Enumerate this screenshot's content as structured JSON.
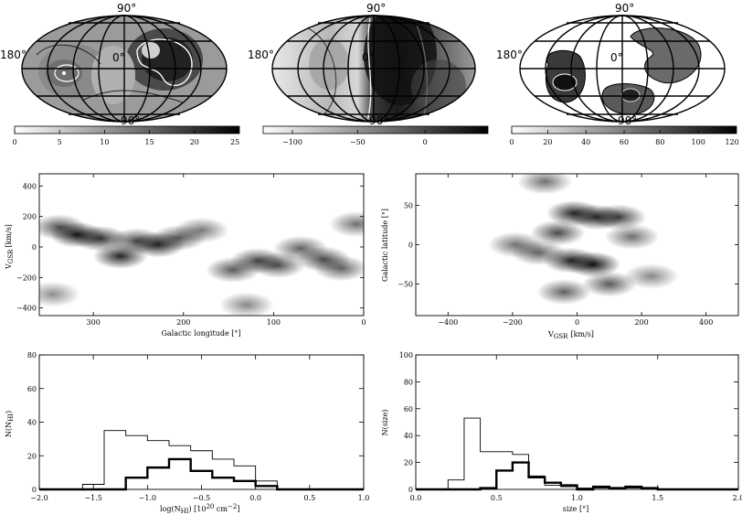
{
  "colors": {
    "ink": "#000000",
    "panel_bg": "#ffffff"
  },
  "maps": [
    {
      "lon_left": "180°",
      "lat_top": "90°",
      "lat_bottom": "−90°",
      "lon_center": "0°",
      "colorbar_ticks": [
        "0",
        "5",
        "10",
        "15",
        "20",
        "25"
      ]
    },
    {
      "lon_left": "180°",
      "lat_top": "90°",
      "lat_bottom": "−90°",
      "lon_center": "0°",
      "colorbar_ticks": [
        "−100",
        "−50",
        "0"
      ]
    },
    {
      "lon_left": "180°",
      "lat_top": "90°",
      "lat_bottom": "−90°",
      "lon_center": "0°",
      "colorbar_ticks": [
        "0",
        "20",
        "40",
        "60",
        "80",
        "100",
        "120"
      ]
    }
  ],
  "chart_data": [
    {
      "type": "heatmap",
      "xlabel_main": "Galactic longitude [°]",
      "ylabel_main": "V",
      "ylabel_sub": "GSR",
      "ylabel_unit": "[km/s]",
      "xlim": [
        360,
        0
      ],
      "ylim": [
        -450,
        480
      ],
      "xticks": [
        300,
        200,
        100,
        0
      ],
      "yticks": [
        400,
        200,
        0,
        -200,
        -400
      ],
      "blobs": [
        {
          "x": 318,
          "y": 80,
          "w": 0.95
        },
        {
          "x": 338,
          "y": 130,
          "w": 0.55
        },
        {
          "x": 292,
          "y": 55,
          "w": 0.75
        },
        {
          "x": 270,
          "y": -60,
          "w": 0.85
        },
        {
          "x": 252,
          "y": 40,
          "w": 0.6
        },
        {
          "x": 228,
          "y": 15,
          "w": 0.85
        },
        {
          "x": 205,
          "y": 60,
          "w": 0.5
        },
        {
          "x": 180,
          "y": 110,
          "w": 0.3
        },
        {
          "x": 145,
          "y": -150,
          "w": 0.5
        },
        {
          "x": 118,
          "y": -90,
          "w": 0.6
        },
        {
          "x": 95,
          "y": -120,
          "w": 0.55
        },
        {
          "x": 70,
          "y": -10,
          "w": 0.45
        },
        {
          "x": 45,
          "y": -80,
          "w": 0.6
        },
        {
          "x": 25,
          "y": -140,
          "w": 0.45
        },
        {
          "x": 8,
          "y": 150,
          "w": 0.35
        },
        {
          "x": 130,
          "y": -380,
          "w": 0.2
        },
        {
          "x": 345,
          "y": -310,
          "w": 0.15
        }
      ]
    },
    {
      "type": "heatmap",
      "xlabel_main": "V",
      "xlabel_sub": "GSR",
      "xlabel_unit": "[km/s]",
      "ylabel_main": "Galactic latitude [°]",
      "xlim": [
        -500,
        500
      ],
      "ylim": [
        -90,
        90
      ],
      "xticks": [
        -400,
        -200,
        0,
        200,
        400
      ],
      "yticks": [
        50,
        0,
        -50
      ],
      "blobs": [
        {
          "x": -10,
          "y": 40,
          "w": 0.85
        },
        {
          "x": 60,
          "y": 35,
          "w": 0.8
        },
        {
          "x": 130,
          "y": 35,
          "w": 0.65
        },
        {
          "x": -60,
          "y": 15,
          "w": 0.6
        },
        {
          "x": -20,
          "y": -20,
          "w": 0.85
        },
        {
          "x": 50,
          "y": -25,
          "w": 1.0
        },
        {
          "x": -120,
          "y": -10,
          "w": 0.45
        },
        {
          "x": -190,
          "y": 0,
          "w": 0.35
        },
        {
          "x": 100,
          "y": -50,
          "w": 0.5
        },
        {
          "x": -40,
          "y": -60,
          "w": 0.45
        },
        {
          "x": -100,
          "y": 80,
          "w": 0.35
        },
        {
          "x": 170,
          "y": 10,
          "w": 0.35
        },
        {
          "x": 230,
          "y": -40,
          "w": 0.2
        }
      ]
    },
    {
      "type": "histogram",
      "xlabel_main": "log(N",
      "xlabel_sub": "HI",
      "xlabel_unit": ") [10",
      "xlabel_exp": "20",
      "xlabel_tail": " cm",
      "xlabel_exp2": "−2",
      "xlabel_end": "]",
      "ylabel_main": "N(N",
      "ylabel_sub": "HI",
      "ylabel_end": ")",
      "xlim": [
        -2.0,
        1.0
      ],
      "ylim": [
        0,
        80
      ],
      "xticks": [
        -2.0,
        -1.5,
        -1.0,
        -0.5,
        0.0,
        0.5,
        1.0
      ],
      "xticklabels": [
        "−2.0",
        "−1.5",
        "−1.0",
        "−0.5",
        "0.0",
        "0.5",
        "1.0"
      ],
      "yticks": [
        0,
        20,
        40,
        60,
        80
      ],
      "bin_edges": [
        -1.6,
        -1.4,
        -1.2,
        -1.0,
        -0.8,
        -0.6,
        -0.4,
        -0.2,
        0.0,
        0.2
      ],
      "series": [
        {
          "style": "thin",
          "counts": [
            3,
            35,
            32,
            29,
            26,
            23,
            18,
            14,
            5
          ]
        },
        {
          "style": "thick",
          "counts": [
            0,
            0,
            7,
            13,
            18,
            11,
            7,
            5,
            2
          ]
        }
      ]
    },
    {
      "type": "histogram",
      "xlabel_main": "size [°]",
      "ylabel_main": "N(size)",
      "xlim": [
        0.0,
        2.0
      ],
      "ylim": [
        0,
        100
      ],
      "xticks": [
        0.0,
        0.5,
        1.0,
        1.5,
        2.0
      ],
      "xticklabels": [
        "0.0",
        "0.5",
        "1.0",
        "1.5",
        "2.0"
      ],
      "yticks": [
        0,
        20,
        40,
        60,
        80,
        100
      ],
      "bin_edges": [
        0.2,
        0.3,
        0.4,
        0.5,
        0.6,
        0.7,
        0.8,
        0.9,
        1.0,
        1.1,
        1.2,
        1.3,
        1.4,
        1.5,
        1.6
      ],
      "series": [
        {
          "style": "thin",
          "counts": [
            7,
            53,
            28,
            28,
            26,
            10,
            3,
            2,
            1,
            1,
            1,
            1,
            1,
            0
          ]
        },
        {
          "style": "thick",
          "counts": [
            0,
            0,
            1,
            14,
            20,
            9,
            5,
            3,
            0,
            2,
            1,
            2,
            1,
            0
          ]
        }
      ]
    }
  ]
}
